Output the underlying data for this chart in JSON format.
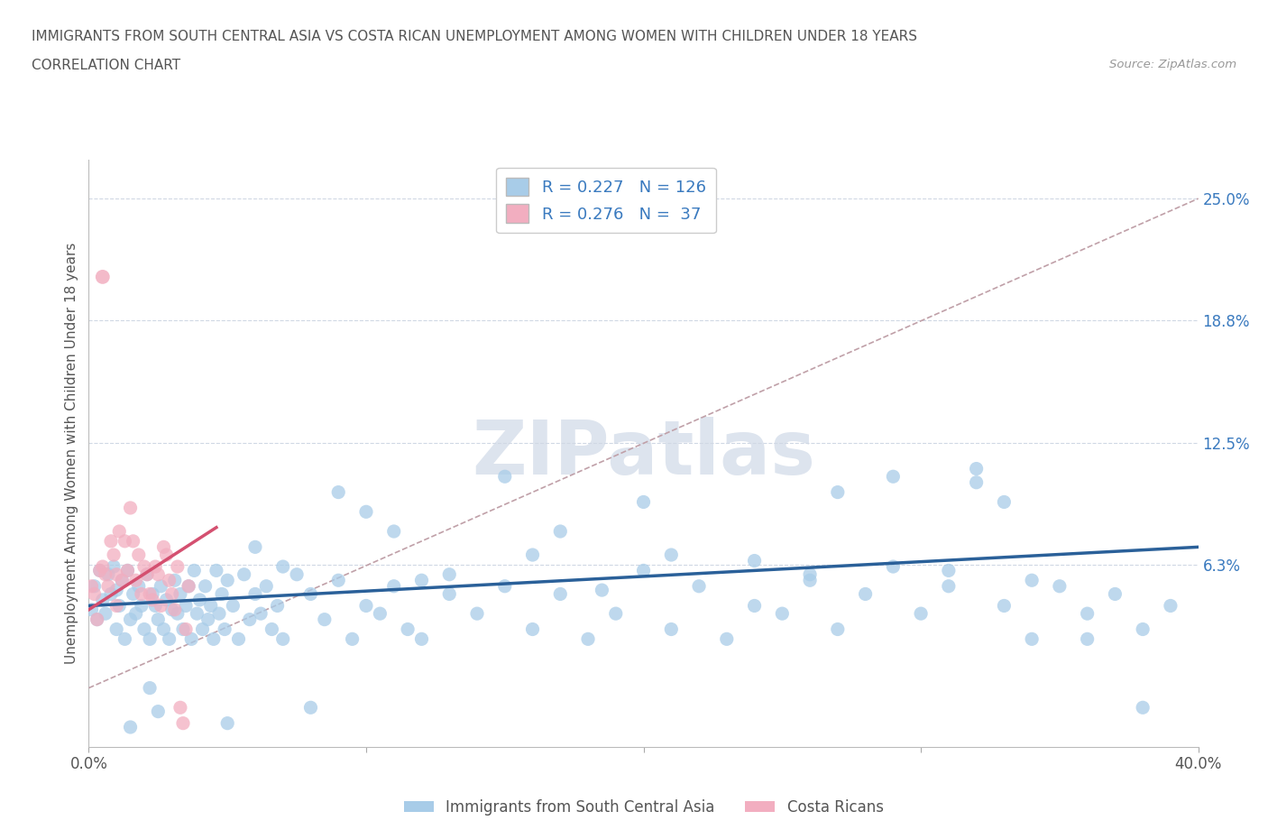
{
  "title": "IMMIGRANTS FROM SOUTH CENTRAL ASIA VS COSTA RICAN UNEMPLOYMENT AMONG WOMEN WITH CHILDREN UNDER 18 YEARS",
  "subtitle": "CORRELATION CHART",
  "source": "Source: ZipAtlas.com",
  "ylabel": "Unemployment Among Women with Children Under 18 years",
  "xlim": [
    0.0,
    0.4
  ],
  "ylim": [
    -0.03,
    0.27
  ],
  "ytick_positions": [
    0.063,
    0.125,
    0.188,
    0.25
  ],
  "ytick_labels": [
    "6.3%",
    "12.5%",
    "18.8%",
    "25.0%"
  ],
  "R_blue": 0.227,
  "N_blue": 126,
  "R_pink": 0.276,
  "N_pink": 37,
  "blue_color": "#a8cce8",
  "pink_color": "#f2aec0",
  "blue_line_color": "#2a6099",
  "pink_line_color": "#d45070",
  "dash_line_color": "#c0a0a8",
  "legend_blue_label": "Immigrants from South Central Asia",
  "legend_pink_label": "Costa Ricans",
  "text_color": "#555555",
  "label_color": "#3a7abf",
  "source_color": "#999999",
  "blue_trend_x": [
    0.0,
    0.4
  ],
  "blue_trend_y": [
    0.042,
    0.072
  ],
  "pink_trend_x": [
    0.0,
    0.046
  ],
  "pink_trend_y": [
    0.04,
    0.082
  ],
  "dash_trend_x": [
    0.0,
    0.4
  ],
  "dash_trend_y": [
    0.0,
    0.25
  ],
  "blue_x": [
    0.001,
    0.002,
    0.003,
    0.004,
    0.005,
    0.006,
    0.007,
    0.008,
    0.009,
    0.01,
    0.01,
    0.011,
    0.012,
    0.013,
    0.014,
    0.015,
    0.016,
    0.017,
    0.018,
    0.019,
    0.02,
    0.021,
    0.022,
    0.023,
    0.024,
    0.025,
    0.026,
    0.027,
    0.028,
    0.029,
    0.03,
    0.031,
    0.032,
    0.033,
    0.034,
    0.035,
    0.036,
    0.037,
    0.038,
    0.039,
    0.04,
    0.041,
    0.042,
    0.043,
    0.044,
    0.045,
    0.046,
    0.047,
    0.048,
    0.049,
    0.05,
    0.052,
    0.054,
    0.056,
    0.058,
    0.06,
    0.062,
    0.064,
    0.066,
    0.068,
    0.07,
    0.075,
    0.08,
    0.085,
    0.09,
    0.095,
    0.1,
    0.105,
    0.11,
    0.115,
    0.12,
    0.13,
    0.14,
    0.15,
    0.16,
    0.17,
    0.18,
    0.19,
    0.2,
    0.21,
    0.22,
    0.23,
    0.24,
    0.25,
    0.26,
    0.27,
    0.28,
    0.29,
    0.3,
    0.31,
    0.32,
    0.33,
    0.34,
    0.35,
    0.36,
    0.37,
    0.38,
    0.39,
    0.32,
    0.33,
    0.15,
    0.17,
    0.2,
    0.24,
    0.27,
    0.29,
    0.34,
    0.36,
    0.38,
    0.1,
    0.12,
    0.09,
    0.11,
    0.06,
    0.08,
    0.13,
    0.16,
    0.185,
    0.21,
    0.26,
    0.31,
    0.05,
    0.07,
    0.025,
    0.015,
    0.022
  ],
  "blue_y": [
    0.04,
    0.052,
    0.035,
    0.06,
    0.045,
    0.038,
    0.058,
    0.048,
    0.062,
    0.05,
    0.03,
    0.042,
    0.055,
    0.025,
    0.06,
    0.035,
    0.048,
    0.038,
    0.052,
    0.042,
    0.03,
    0.058,
    0.025,
    0.048,
    0.042,
    0.035,
    0.052,
    0.03,
    0.045,
    0.025,
    0.04,
    0.055,
    0.038,
    0.048,
    0.03,
    0.042,
    0.052,
    0.025,
    0.06,
    0.038,
    0.045,
    0.03,
    0.052,
    0.035,
    0.042,
    0.025,
    0.06,
    0.038,
    0.048,
    0.03,
    0.055,
    0.042,
    0.025,
    0.058,
    0.035,
    0.048,
    0.038,
    0.052,
    0.03,
    0.042,
    0.025,
    0.058,
    0.048,
    0.035,
    0.055,
    0.025,
    0.042,
    0.038,
    0.052,
    0.03,
    0.025,
    0.048,
    0.038,
    0.052,
    0.03,
    0.048,
    0.025,
    0.038,
    0.06,
    0.03,
    0.052,
    0.025,
    0.042,
    0.038,
    0.055,
    0.03,
    0.048,
    0.062,
    0.038,
    0.052,
    0.105,
    0.042,
    0.025,
    0.052,
    0.038,
    0.048,
    0.03,
    0.042,
    0.112,
    0.095,
    0.108,
    0.08,
    0.095,
    0.065,
    0.1,
    0.108,
    0.055,
    0.025,
    -0.01,
    0.09,
    0.055,
    0.1,
    0.08,
    0.072,
    -0.01,
    0.058,
    0.068,
    0.05,
    0.068,
    0.058,
    0.06,
    -0.018,
    0.062,
    -0.012,
    -0.02,
    0.0
  ],
  "pink_x": [
    0.001,
    0.002,
    0.003,
    0.004,
    0.005,
    0.006,
    0.007,
    0.008,
    0.009,
    0.01,
    0.01,
    0.011,
    0.012,
    0.013,
    0.014,
    0.015,
    0.016,
    0.017,
    0.018,
    0.019,
    0.02,
    0.021,
    0.022,
    0.023,
    0.024,
    0.025,
    0.026,
    0.027,
    0.028,
    0.029,
    0.03,
    0.031,
    0.032,
    0.033,
    0.034,
    0.035,
    0.036
  ],
  "pink_y": [
    0.052,
    0.048,
    0.035,
    0.06,
    0.062,
    0.058,
    0.052,
    0.075,
    0.068,
    0.058,
    0.042,
    0.08,
    0.055,
    0.075,
    0.06,
    0.092,
    0.075,
    0.055,
    0.068,
    0.048,
    0.062,
    0.058,
    0.048,
    0.045,
    0.062,
    0.058,
    0.042,
    0.072,
    0.068,
    0.055,
    0.048,
    0.04,
    0.062,
    -0.01,
    -0.018,
    0.03,
    0.052
  ]
}
